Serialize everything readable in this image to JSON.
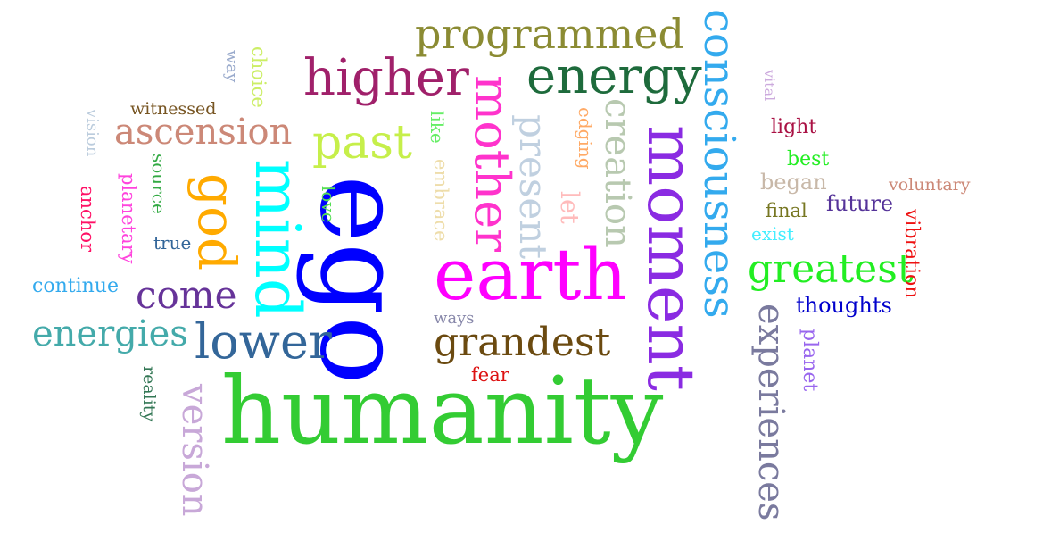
{
  "words": [
    {
      "text": "humanity",
      "color": "#33cc33",
      "rotated": false
    },
    {
      "text": "ego",
      "color": "#0000ff",
      "rotated": true
    },
    {
      "text": "moment",
      "color": "#8a2be2",
      "rotated": true
    },
    {
      "text": "earth",
      "color": "#ff00ff",
      "rotated": false
    },
    {
      "text": "consciousness",
      "color": "#33aaee",
      "rotated": true
    },
    {
      "text": "mind",
      "color": "#00ffff",
      "rotated": true
    },
    {
      "text": "energy",
      "color": "#1e6b3c",
      "rotated": false
    },
    {
      "text": "programmed",
      "color": "#8b8b33",
      "rotated": false
    },
    {
      "text": "higher",
      "color": "#a0206a",
      "rotated": false
    },
    {
      "text": "mother",
      "color": "#ff33cc",
      "rotated": true
    },
    {
      "text": "lower",
      "color": "#336699",
      "rotated": false
    },
    {
      "text": "experiences",
      "color": "#7a7a9e",
      "rotated": true
    },
    {
      "text": "creation",
      "color": "#b8c9b0",
      "rotated": true
    },
    {
      "text": "god",
      "color": "#ffaa00",
      "rotated": true
    },
    {
      "text": "past",
      "color": "#c6ef4a",
      "rotated": false
    },
    {
      "text": "grandest",
      "color": "#6b4a10",
      "rotated": false
    },
    {
      "text": "greatest",
      "color": "#22ee22",
      "rotated": false
    },
    {
      "text": "ascension",
      "color": "#cc8877",
      "rotated": false
    },
    {
      "text": "come",
      "color": "#663399",
      "rotated": false
    },
    {
      "text": "energies",
      "color": "#44aaaa",
      "rotated": false
    },
    {
      "text": "version",
      "color": "#c8a8d8",
      "rotated": true
    },
    {
      "text": "present",
      "color": "#c0d0e0",
      "rotated": true
    },
    {
      "text": "thoughts",
      "color": "#0000cc",
      "rotated": false
    },
    {
      "text": "continue",
      "color": "#33aaee",
      "rotated": false
    },
    {
      "text": "vibration",
      "color": "#ee1111",
      "rotated": true
    },
    {
      "text": "future",
      "color": "#553399",
      "rotated": false
    },
    {
      "text": "planet",
      "color": "#9966ee",
      "rotated": true
    },
    {
      "text": "began",
      "color": "#c8b8a8",
      "rotated": false
    },
    {
      "text": "exist",
      "color": "#44eeff",
      "rotated": false
    },
    {
      "text": "light",
      "color": "#aa1144",
      "rotated": false
    },
    {
      "text": "best",
      "color": "#22ee22",
      "rotated": false
    },
    {
      "text": "voluntary",
      "color": "#cc8877",
      "rotated": false
    },
    {
      "text": "final",
      "color": "#777722",
      "rotated": false
    },
    {
      "text": "witnessed",
      "color": "#775522",
      "rotated": false
    },
    {
      "text": "true",
      "color": "#336699",
      "rotated": false
    },
    {
      "text": "ways",
      "color": "#8888aa",
      "rotated": false
    },
    {
      "text": "fear",
      "color": "#dd1111",
      "rotated": false
    },
    {
      "text": "let",
      "color": "#ffbbbb",
      "rotated": true
    },
    {
      "text": "edging",
      "color": "#ffaa66",
      "rotated": true
    },
    {
      "text": "embrace",
      "color": "#eeddaa",
      "rotated": true
    },
    {
      "text": "like",
      "color": "#66ee66",
      "rotated": true
    },
    {
      "text": "love",
      "color": "#55dd55",
      "rotated": true
    },
    {
      "text": "choice",
      "color": "#ccee66",
      "rotated": true
    },
    {
      "text": "way",
      "color": "#99aacc",
      "rotated": true
    },
    {
      "text": "source",
      "color": "#33aa44",
      "rotated": true
    },
    {
      "text": "planetary",
      "color": "#ff44dd",
      "rotated": true
    },
    {
      "text": "anchor",
      "color": "#ff1166",
      "rotated": true
    },
    {
      "text": "vision",
      "color": "#bbccdd",
      "rotated": true
    },
    {
      "text": "reality",
      "color": "#337755",
      "rotated": true
    },
    {
      "text": "vital",
      "color": "#ccaadd",
      "rotated": true
    }
  ]
}
